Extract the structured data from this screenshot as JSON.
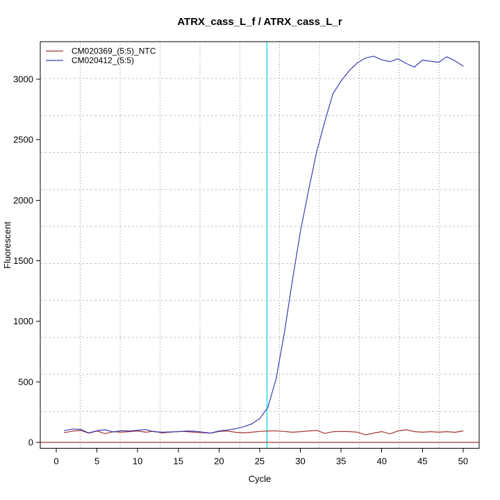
{
  "title": "ATRX_cass_L_f / ATRX_cass_L_r",
  "axes": {
    "xlabel": "Cycle",
    "ylabel": "Fluorescent"
  },
  "legend": {
    "position": "top-left",
    "items": [
      {
        "label": "CM020369_(5:5)_NTC",
        "color": "#A23434"
      },
      {
        "label": "CM020412_(5:5)",
        "color": "#3D3DB2"
      }
    ]
  },
  "chart_data": {
    "type": "line",
    "title": "ATRX_cass_L_f / ATRX_cass_L_r",
    "xlabel": "Cycle",
    "ylabel": "Fluorescent",
    "xticks": [
      0,
      5,
      10,
      15,
      20,
      25,
      30,
      35,
      40,
      45,
      50
    ],
    "yticks": [
      0,
      500,
      1000,
      1500,
      2000,
      2500,
      3000
    ],
    "xlim": [
      -1.96,
      51.97
    ],
    "ylim": [
      -48.8,
      3310
    ],
    "grid": {
      "divisions": 11,
      "horizontal_style": "dashed",
      "horizontal_color": "#c6c6c6",
      "vertical_style": "dotted",
      "vertical_color": "#878787"
    },
    "x": [
      1,
      2,
      3,
      4,
      5,
      6,
      7,
      8,
      9,
      10,
      11,
      12,
      13,
      14,
      15,
      16,
      17,
      18,
      19,
      20,
      21,
      22,
      23,
      24,
      25,
      26,
      27,
      28,
      29,
      30,
      31,
      32,
      33,
      34,
      35,
      36,
      37,
      38,
      39,
      40,
      41,
      42,
      43,
      44,
      45,
      46,
      47,
      48,
      49,
      50
    ],
    "series": [
      {
        "name": "CM020369_(5:5)_NTC",
        "color": "#A23434",
        "values": [
          80,
          93,
          99,
          76,
          94,
          72,
          88,
          84,
          89,
          94,
          84,
          92,
          78,
          84,
          90,
          89,
          84,
          80,
          76,
          90,
          94,
          84,
          78,
          84,
          90,
          94,
          95,
          90,
          84,
          88,
          94,
          99,
          74,
          88,
          90,
          89,
          84,
          62,
          76,
          89,
          70,
          94,
          104,
          89,
          84,
          88,
          84,
          88,
          83,
          94
        ]
      },
      {
        "name": "CM020412_(5:5)",
        "color": "#3D3DB2",
        "values": [
          97,
          110,
          107,
          78,
          96,
          104,
          86,
          96,
          94,
          100,
          106,
          88,
          84,
          86,
          88,
          94,
          92,
          84,
          77,
          94,
          102,
          112,
          128,
          152,
          196,
          288,
          520,
          890,
          1330,
          1740,
          2080,
          2400,
          2650,
          2880,
          2985,
          3070,
          3135,
          3175,
          3190,
          3160,
          3145,
          3168,
          3130,
          3100,
          3158,
          3148,
          3140,
          3185,
          3152,
          3108
        ]
      }
    ],
    "markers": {
      "threshold_line": {
        "y": 0,
        "color": "#A23434",
        "style": "solid",
        "orientation": "horizontal"
      },
      "ct_line": {
        "x": 25.9,
        "color": "#55E6EE",
        "style": "solid",
        "orientation": "vertical"
      }
    },
    "legend_entries": [
      "CM020369_(5:5)_NTC",
      "CM020412_(5:5)"
    ]
  }
}
